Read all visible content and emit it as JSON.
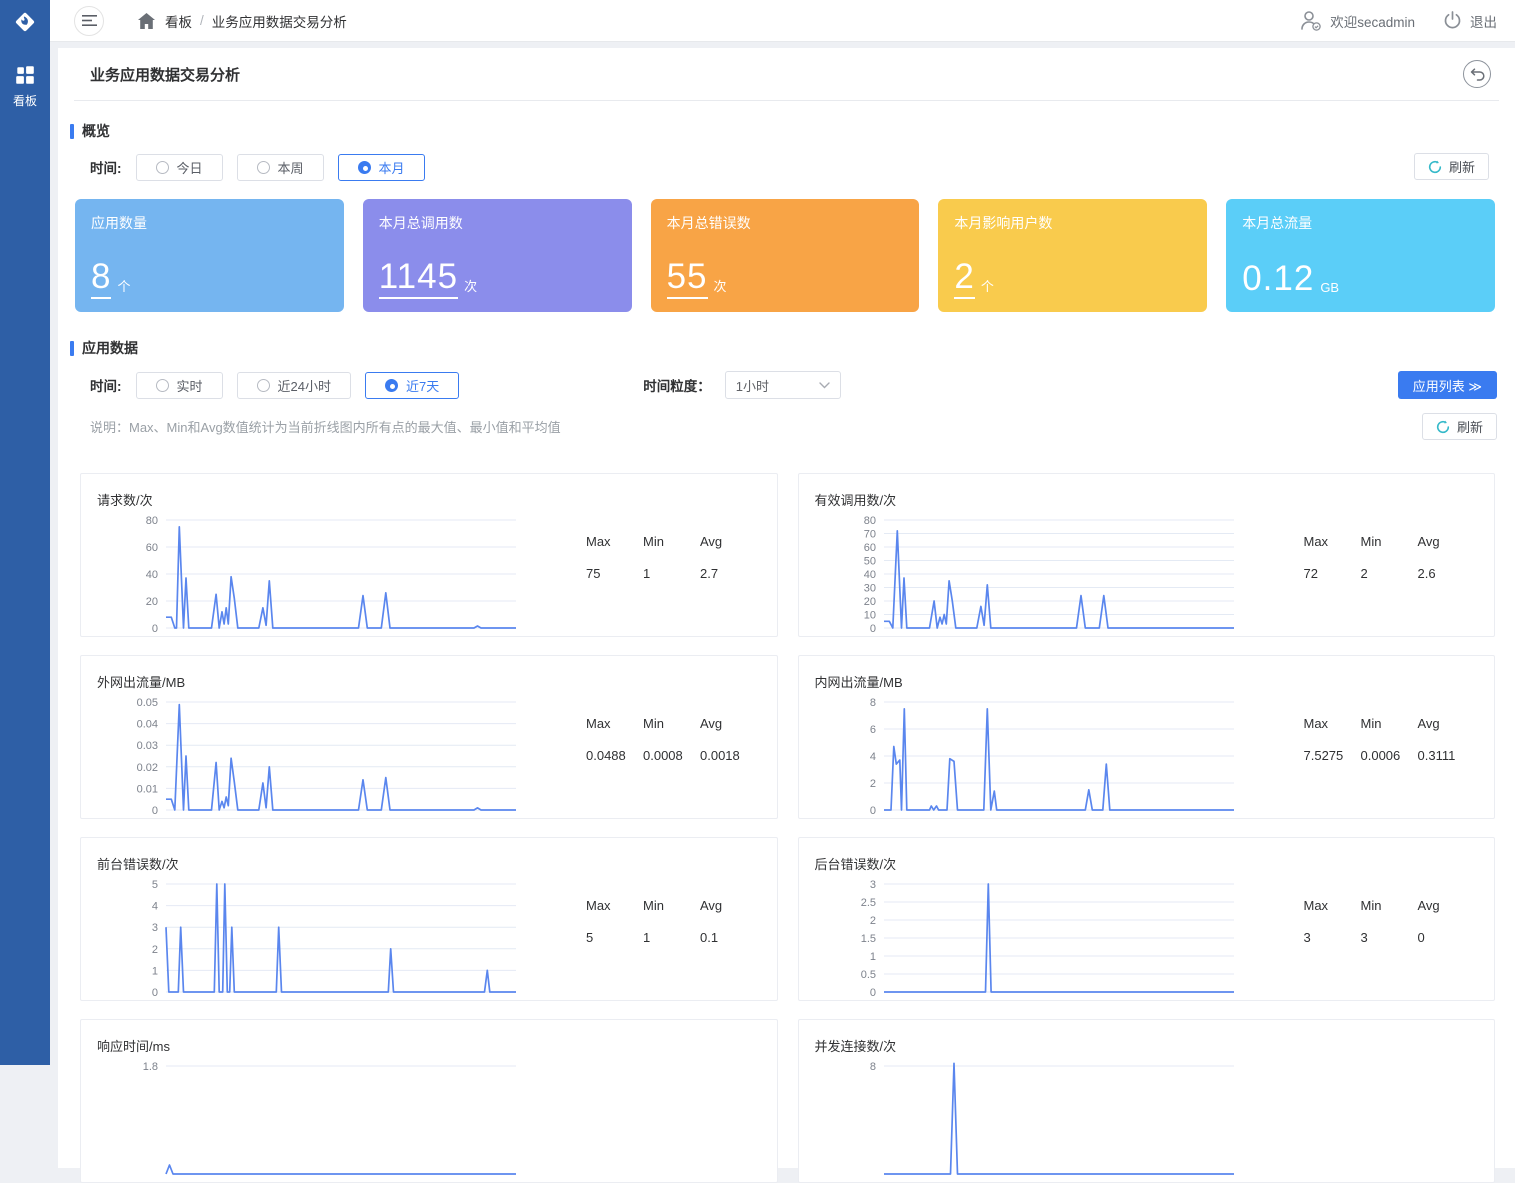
{
  "topbar": {
    "breadcrumb": {
      "items": [
        "看板",
        "业务应用数据交易分析"
      ],
      "separator": "/"
    },
    "welcome": "欢迎secadmin",
    "logout": "退出"
  },
  "sidebar": {
    "items": [
      {
        "label": "看板",
        "icon": "dashboard-grid-icon",
        "active": true
      }
    ]
  },
  "page": {
    "title": "业务应用数据交易分析"
  },
  "colors": {
    "accent_blue": "#3a7bf0",
    "sidebar_blue": "#2e5fa6",
    "line_blue": "#5a86ee",
    "refresh_teal": "#35b9c9"
  },
  "overview": {
    "section_title": "概览",
    "time_label": "时间:",
    "time_options": [
      {
        "label": "今日",
        "selected": false
      },
      {
        "label": "本周",
        "selected": false
      },
      {
        "label": "本月",
        "selected": true
      }
    ],
    "refresh_label": "刷新",
    "cards": [
      {
        "title": "应用数量",
        "value": "8",
        "unit": "个",
        "color": "#75b5f0",
        "underlined": true
      },
      {
        "title": "本月总调用数",
        "value": "1145",
        "unit": "次",
        "color": "#8b8deb",
        "underlined": true
      },
      {
        "title": "本月总错误数",
        "value": "55",
        "unit": "次",
        "color": "#f8a446",
        "underlined": true
      },
      {
        "title": "本月影响用户数",
        "value": "2",
        "unit": "个",
        "color": "#f9cb4d",
        "underlined": true
      },
      {
        "title": "本月总流量",
        "value": "0.12",
        "unit": "GB",
        "color": "#5bcef8",
        "underlined": false
      }
    ]
  },
  "app_data": {
    "section_title": "应用数据",
    "time_label": "时间:",
    "time_options": [
      {
        "label": "实时",
        "selected": false
      },
      {
        "label": "近24小时",
        "selected": false
      },
      {
        "label": "近7天",
        "selected": true
      }
    ],
    "granularity_label": "时间粒度：",
    "granularity_value": "1小时",
    "app_list_button": "应用列表 ≫",
    "refresh_label": "刷新",
    "note": "说明：Max、Min和Avg数值统计为当前折线图内所有点的最大值、最小值和平均值",
    "stats_headers": {
      "max": "Max",
      "min": "Min",
      "avg": "Avg"
    }
  },
  "chart_data": [
    {
      "type": "line",
      "title": "请求数/次",
      "ylim": [
        0,
        80
      ],
      "yticks": [
        80,
        60,
        40,
        20,
        0
      ],
      "stats": {
        "max": "75",
        "min": "1",
        "avg": "2.7"
      },
      "points": [
        [
          0,
          8
        ],
        [
          1.5,
          8
        ],
        [
          2.5,
          0
        ],
        [
          3,
          0
        ],
        [
          3.8,
          75
        ],
        [
          5,
          0
        ],
        [
          5.7,
          37
        ],
        [
          6.5,
          0
        ],
        [
          13,
          0
        ],
        [
          14.3,
          25
        ],
        [
          15.2,
          0
        ],
        [
          16,
          12
        ],
        [
          16.6,
          3
        ],
        [
          17.2,
          15
        ],
        [
          17.8,
          3
        ],
        [
          18.6,
          38
        ],
        [
          19.5,
          22
        ],
        [
          20.5,
          0
        ],
        [
          26.5,
          0
        ],
        [
          27.7,
          15
        ],
        [
          28.6,
          2
        ],
        [
          29.5,
          35
        ],
        [
          30.5,
          0
        ],
        [
          55,
          0
        ],
        [
          56.3,
          24
        ],
        [
          57.5,
          0
        ],
        [
          61.5,
          0
        ],
        [
          62.8,
          26
        ],
        [
          64,
          0
        ],
        [
          88,
          0
        ],
        [
          89,
          1.5
        ],
        [
          90,
          0
        ],
        [
          100,
          0
        ]
      ]
    },
    {
      "type": "line",
      "title": "有效调用数/次",
      "ylim": [
        0,
        80
      ],
      "yticks": [
        80,
        70,
        60,
        50,
        40,
        30,
        20,
        10,
        0
      ],
      "stats": {
        "max": "72",
        "min": "2",
        "avg": "2.6"
      },
      "points": [
        [
          0,
          5
        ],
        [
          1.5,
          5
        ],
        [
          2.5,
          0
        ],
        [
          3.8,
          72
        ],
        [
          5,
          0
        ],
        [
          5.7,
          37
        ],
        [
          6.5,
          0
        ],
        [
          13,
          0
        ],
        [
          14.3,
          20
        ],
        [
          15.2,
          0
        ],
        [
          16,
          8
        ],
        [
          16.6,
          3
        ],
        [
          17.2,
          10
        ],
        [
          17.8,
          3
        ],
        [
          18.6,
          35
        ],
        [
          19.5,
          20
        ],
        [
          20.5,
          0
        ],
        [
          26.5,
          0
        ],
        [
          27.7,
          16
        ],
        [
          28.6,
          2
        ],
        [
          29.5,
          32
        ],
        [
          30.5,
          0
        ],
        [
          55,
          0
        ],
        [
          56.3,
          24
        ],
        [
          57.5,
          0
        ],
        [
          61.5,
          0
        ],
        [
          62.8,
          24
        ],
        [
          64,
          0
        ],
        [
          100,
          0
        ]
      ]
    },
    {
      "type": "line",
      "title": "外网出流量/MB",
      "ylim": [
        0,
        0.05
      ],
      "yticks": [
        0.05,
        0.04,
        0.03,
        0.02,
        0.01,
        0
      ],
      "stats": {
        "max": "0.0488",
        "min": "0.0008",
        "avg": "0.0018"
      },
      "points": [
        [
          0,
          0.005
        ],
        [
          1.5,
          0.005
        ],
        [
          2.5,
          0
        ],
        [
          3.8,
          0.0488
        ],
        [
          5,
          0
        ],
        [
          5.7,
          0.025
        ],
        [
          6.5,
          0
        ],
        [
          13,
          0
        ],
        [
          14.3,
          0.022
        ],
        [
          15.2,
          0
        ],
        [
          16,
          0.004
        ],
        [
          16.6,
          0.001
        ],
        [
          17.2,
          0.006
        ],
        [
          17.8,
          0.002
        ],
        [
          18.6,
          0.024
        ],
        [
          19.5,
          0.013
        ],
        [
          20.5,
          0
        ],
        [
          26.5,
          0
        ],
        [
          27.7,
          0.0125
        ],
        [
          28.6,
          0.001
        ],
        [
          29.5,
          0.02
        ],
        [
          30.5,
          0
        ],
        [
          55,
          0
        ],
        [
          56.3,
          0.014
        ],
        [
          57.5,
          0
        ],
        [
          61.5,
          0
        ],
        [
          62.8,
          0.015
        ],
        [
          64,
          0
        ],
        [
          88,
          0
        ],
        [
          89,
          0.001
        ],
        [
          90,
          0
        ],
        [
          100,
          0
        ]
      ]
    },
    {
      "type": "line",
      "title": "内网出流量/MB",
      "ylim": [
        0,
        8
      ],
      "yticks": [
        8,
        6,
        4,
        2,
        0
      ],
      "stats": {
        "max": "7.5275",
        "min": "0.0006",
        "avg": "0.3111"
      },
      "points": [
        [
          0,
          0
        ],
        [
          2,
          0
        ],
        [
          2.8,
          4.7
        ],
        [
          3.5,
          3.4
        ],
        [
          4.5,
          3.7
        ],
        [
          5,
          0
        ],
        [
          5.8,
          7.5
        ],
        [
          6.5,
          0
        ],
        [
          13,
          0
        ],
        [
          13.5,
          0.3
        ],
        [
          14.2,
          0
        ],
        [
          15,
          0.3
        ],
        [
          15.6,
          0
        ],
        [
          18,
          0
        ],
        [
          18.8,
          3.8
        ],
        [
          20,
          3.6
        ],
        [
          21,
          0
        ],
        [
          28.5,
          0
        ],
        [
          29.5,
          7.5
        ],
        [
          30.5,
          0
        ],
        [
          31.5,
          1.4
        ],
        [
          32.2,
          0
        ],
        [
          57.5,
          0
        ],
        [
          58.5,
          1.5
        ],
        [
          59.5,
          0
        ],
        [
          62.5,
          0
        ],
        [
          63.5,
          3.4
        ],
        [
          64.5,
          0
        ],
        [
          100,
          0
        ]
      ]
    },
    {
      "type": "line",
      "title": "前台错误数/次",
      "ylim": [
        0,
        5
      ],
      "yticks": [
        5,
        4,
        3,
        2,
        1,
        0
      ],
      "stats": {
        "max": "5",
        "min": "1",
        "avg": "0.1"
      },
      "points": [
        [
          0,
          3
        ],
        [
          0.8,
          0
        ],
        [
          3.5,
          0
        ],
        [
          4.2,
          3
        ],
        [
          5,
          0
        ],
        [
          13.8,
          0
        ],
        [
          14.5,
          5
        ],
        [
          15.2,
          0
        ],
        [
          16.2,
          0
        ],
        [
          16.8,
          5
        ],
        [
          17.5,
          0
        ],
        [
          18.2,
          0
        ],
        [
          18.8,
          3
        ],
        [
          19.5,
          0
        ],
        [
          31.5,
          0
        ],
        [
          32.2,
          3
        ],
        [
          33,
          0
        ],
        [
          63.5,
          0
        ],
        [
          64.2,
          2
        ],
        [
          65,
          0
        ],
        [
          91,
          0
        ],
        [
          91.8,
          1
        ],
        [
          92.5,
          0
        ],
        [
          100,
          0
        ]
      ]
    },
    {
      "type": "line",
      "title": "后台错误数/次",
      "ylim": [
        0,
        3
      ],
      "yticks": [
        3,
        2.5,
        2,
        1.5,
        1,
        0.5,
        0
      ],
      "stats": {
        "max": "3",
        "min": "3",
        "avg": "0"
      },
      "points": [
        [
          0,
          0
        ],
        [
          29,
          0
        ],
        [
          29.8,
          3
        ],
        [
          30.6,
          0
        ],
        [
          100,
          0
        ]
      ]
    },
    {
      "type": "line",
      "title": "响应时间/ms",
      "ylim": [
        0,
        1.8
      ],
      "yticks": [
        1.8
      ],
      "stats": null,
      "points": [
        [
          0,
          0
        ],
        [
          1,
          0.15
        ],
        [
          2,
          0
        ],
        [
          100,
          0
        ]
      ]
    },
    {
      "type": "line",
      "title": "并发连接数/次",
      "ylim": [
        0,
        8
      ],
      "yticks": [
        8
      ],
      "stats": null,
      "points": [
        [
          0,
          0
        ],
        [
          19,
          0
        ],
        [
          20,
          8.2
        ],
        [
          21,
          0
        ],
        [
          100,
          0
        ]
      ]
    }
  ]
}
